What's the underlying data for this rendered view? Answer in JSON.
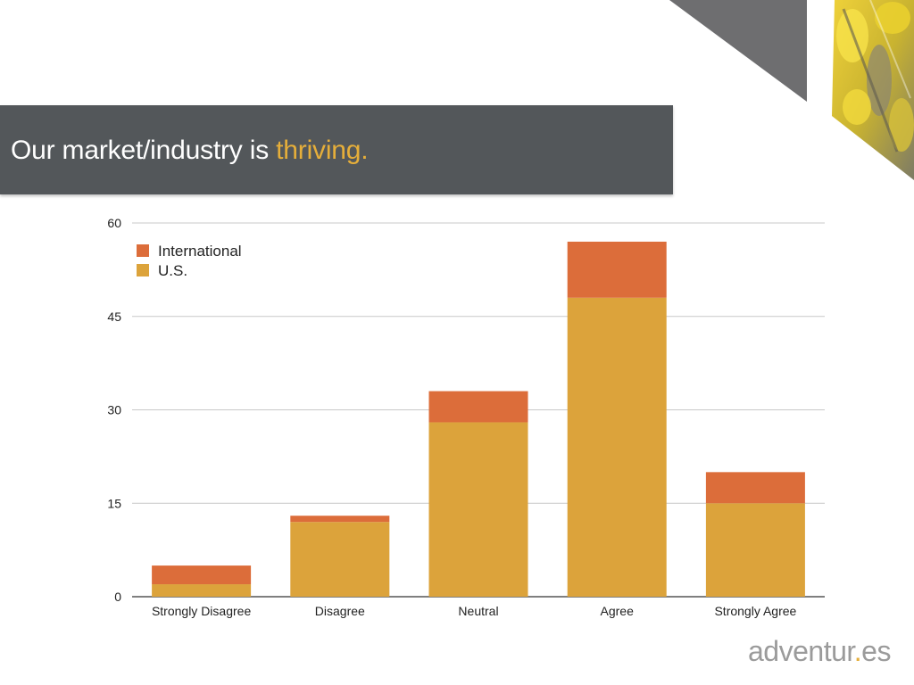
{
  "slide": {
    "title_main": "Our market/industry is ",
    "title_highlight": "thriving.",
    "brand_name_a": "adventur",
    "brand_dot": ".",
    "brand_name_b": "es",
    "accent_color": "#e5ae3a",
    "band_color": "#53575a"
  },
  "chart_data": {
    "type": "bar",
    "stacked": true,
    "categories": [
      "Strongly Disagree",
      "Disagree",
      "Neutral",
      "Agree",
      "Strongly Agree"
    ],
    "series": [
      {
        "name": "U.S.",
        "values": [
          2,
          12,
          28,
          48,
          15
        ],
        "color": "#dca33b"
      },
      {
        "name": "International",
        "values": [
          3,
          1,
          5,
          9,
          5
        ],
        "color": "#dc6d3a"
      }
    ],
    "legend_order": [
      "International",
      "U.S."
    ],
    "y_ticks": [
      0,
      15,
      30,
      45,
      60
    ],
    "ylim": [
      0,
      60
    ],
    "grid": true,
    "legend_position": "top-left",
    "title": "",
    "xlabel": "",
    "ylabel": ""
  }
}
